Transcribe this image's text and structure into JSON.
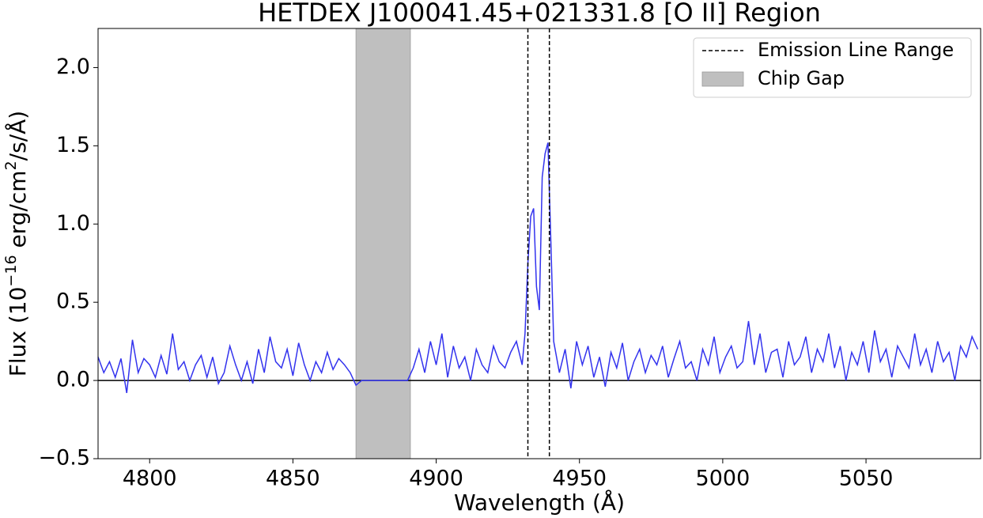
{
  "chart_data": {
    "type": "line",
    "title": "HETDEX J100041.45+021331.8 [O II] Region",
    "xlabel": "Wavelength (Å)",
    "ylabel": [
      "Flux (10",
      "−16",
      " erg/cm",
      "2",
      "/s/Å)"
    ],
    "xlim": [
      4782,
      5090
    ],
    "ylim": [
      -0.5,
      2.25
    ],
    "xticks": [
      4800,
      4850,
      4900,
      4950,
      5000,
      5050
    ],
    "yticks": [
      {
        "value": -0.5,
        "label": "−0.5"
      },
      {
        "value": 0,
        "label": "0.0"
      },
      0.5,
      {
        "value": 1,
        "label": "1.0"
      },
      1.5,
      {
        "value": 2,
        "label": "2.0"
      }
    ],
    "hline": 0,
    "color": "#3333ee",
    "x": [
      4782,
      4784,
      4786,
      4788,
      4790,
      4792,
      4794,
      4796,
      4798,
      4800,
      4802,
      4804,
      4806,
      4808,
      4810,
      4812,
      4814,
      4816,
      4818,
      4820,
      4822,
      4824,
      4826,
      4828,
      4830,
      4832,
      4834,
      4836,
      4838,
      4840,
      4842,
      4844,
      4846,
      4848,
      4850,
      4852,
      4854,
      4856,
      4858,
      4860,
      4862,
      4864,
      4866,
      4868,
      4870,
      4872,
      4874,
      4876,
      4878,
      4880,
      4882,
      4884,
      4886,
      4888,
      4890,
      4892,
      4894,
      4896,
      4898,
      4900,
      4902,
      4904,
      4906,
      4908,
      4910,
      4912,
      4914,
      4916,
      4918,
      4920,
      4922,
      4924,
      4926,
      4928,
      4930,
      4931,
      4932,
      4933,
      4934,
      4935,
      4936,
      4937,
      4938,
      4939,
      4940,
      4941,
      4943,
      4945,
      4947,
      4949,
      4951,
      4953,
      4955,
      4957,
      4959,
      4961,
      4963,
      4965,
      4967,
      4969,
      4971,
      4973,
      4975,
      4977,
      4979,
      4981,
      4983,
      4985,
      4987,
      4989,
      4991,
      4993,
      4995,
      4997,
      4999,
      5001,
      5003,
      5005,
      5007,
      5009,
      5011,
      5013,
      5015,
      5017,
      5019,
      5021,
      5023,
      5025,
      5027,
      5029,
      5031,
      5033,
      5035,
      5037,
      5039,
      5041,
      5043,
      5045,
      5047,
      5049,
      5051,
      5053,
      5055,
      5057,
      5059,
      5061,
      5063,
      5065,
      5067,
      5069,
      5071,
      5073,
      5075,
      5077,
      5079,
      5081,
      5083,
      5085,
      5087,
      5089
    ],
    "values": [
      0.15,
      0.05,
      0.12,
      0.02,
      0.14,
      -0.08,
      0.26,
      0.05,
      0.14,
      0.1,
      0.02,
      0.16,
      0.04,
      0.3,
      0.07,
      0.12,
      0.0,
      0.1,
      0.16,
      0.02,
      0.15,
      -0.02,
      0.05,
      0.22,
      0.1,
      0.0,
      0.12,
      -0.02,
      0.2,
      0.05,
      0.28,
      0.12,
      0.08,
      0.2,
      0.03,
      0.24,
      0.1,
      0.0,
      0.12,
      0.05,
      0.18,
      0.07,
      0.14,
      0.1,
      0.05,
      -0.03,
      0,
      0,
      0,
      0,
      0,
      0,
      0,
      0,
      0,
      0.08,
      0.2,
      0.05,
      0.25,
      0.1,
      0.3,
      0.02,
      0.22,
      0.08,
      0.15,
      0.0,
      0.2,
      0.1,
      0.05,
      0.22,
      0.12,
      0.08,
      0.18,
      0.25,
      0.1,
      0.3,
      0.75,
      1.05,
      1.1,
      0.6,
      0.45,
      1.3,
      1.45,
      1.52,
      0.9,
      0.25,
      0.05,
      0.2,
      -0.05,
      0.25,
      0.1,
      0.22,
      0.02,
      0.15,
      -0.04,
      0.18,
      0.08,
      0.24,
      0.0,
      0.12,
      0.2,
      0.05,
      0.16,
      0.1,
      0.22,
      0.02,
      0.14,
      0.25,
      0.08,
      0.12,
      0.0,
      0.2,
      0.1,
      0.28,
      0.05,
      0.15,
      0.22,
      0.08,
      0.12,
      0.38,
      0.1,
      0.3,
      0.05,
      0.18,
      0.2,
      0.02,
      0.25,
      0.1,
      0.15,
      0.28,
      0.05,
      0.2,
      0.12,
      0.3,
      0.08,
      0.22,
      0.0,
      0.18,
      0.1,
      0.25,
      0.05,
      0.32,
      0.12,
      0.2,
      0.02,
      0.22,
      0.15,
      0.08,
      0.3,
      0.1,
      0.2,
      0.05,
      0.25,
      0.12,
      0.18,
      0.0,
      0.22,
      0.15,
      0.28,
      0.2
    ],
    "emission_line_range": {
      "label": "Emission Line Range",
      "x": [
        4932,
        4939.5
      ],
      "color": "#000000"
    },
    "chip_gap": {
      "label": "Chip Gap",
      "x": [
        4872,
        4891
      ],
      "color": "#bfbfbf"
    },
    "legend": "upper right"
  }
}
